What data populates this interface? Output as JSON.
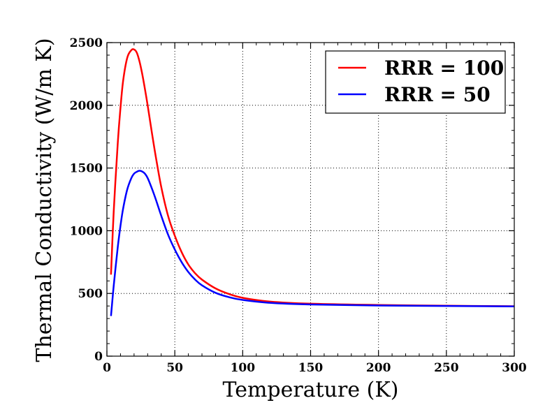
{
  "chart_data": {
    "type": "line",
    "title": "",
    "xlabel": "Temperature (K)",
    "ylabel": "Thermal Conductivity (W/m K)",
    "xlim": [
      0,
      300
    ],
    "ylim": [
      0,
      2500
    ],
    "xticks": [
      0,
      50,
      100,
      150,
      200,
      250,
      300
    ],
    "yticks": [
      0,
      500,
      1000,
      1500,
      2000,
      2500
    ],
    "grid": true,
    "legend_position": "top-right",
    "series": [
      {
        "name": "RRR = 100",
        "color": "#ff0000",
        "x": [
          3,
          5,
          8,
          10,
          12,
          15,
          18,
          20,
          22,
          24,
          26,
          28,
          30,
          33,
          36,
          40,
          45,
          50,
          55,
          60,
          65,
          70,
          80,
          90,
          100,
          120,
          150,
          200,
          250,
          300
        ],
        "y": [
          650,
          1150,
          1700,
          1980,
          2200,
          2380,
          2440,
          2445,
          2420,
          2350,
          2250,
          2130,
          2000,
          1790,
          1590,
          1350,
          1120,
          960,
          830,
          730,
          660,
          610,
          540,
          495,
          465,
          435,
          418,
          408,
          402,
          398
        ]
      },
      {
        "name": "RRR = 50",
        "color": "#0000ff",
        "x": [
          3,
          5,
          8,
          10,
          12,
          15,
          18,
          20,
          22,
          24,
          26,
          28,
          30,
          33,
          36,
          40,
          45,
          50,
          55,
          60,
          65,
          70,
          80,
          90,
          100,
          120,
          150,
          200,
          250,
          300
        ],
        "y": [
          320,
          560,
          870,
          1040,
          1180,
          1330,
          1420,
          1455,
          1470,
          1478,
          1472,
          1455,
          1420,
          1340,
          1250,
          1120,
          970,
          850,
          750,
          670,
          610,
          565,
          505,
          470,
          448,
          425,
          412,
          404,
          400,
          397
        ]
      }
    ]
  }
}
